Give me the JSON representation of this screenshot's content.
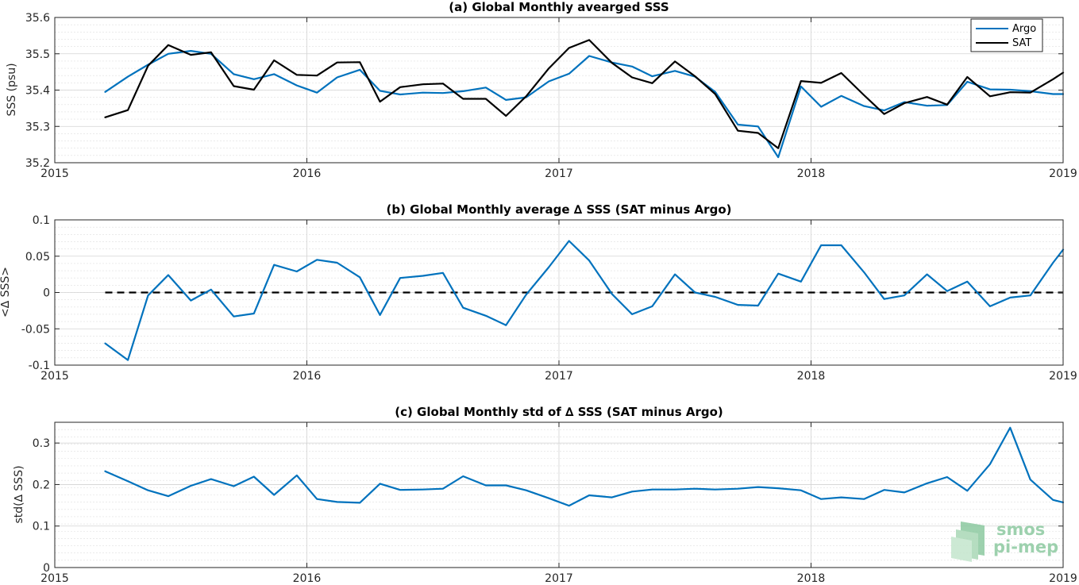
{
  "colors": {
    "argo": "#0072bd",
    "sat": "#000000",
    "grid": "#dfdfdf",
    "watermark": "#8cc9a0"
  },
  "watermark": {
    "line1": "smos",
    "line2": "pi-mep"
  },
  "chart_data": [
    {
      "type": "line",
      "title": "(a) Global Monthly avearged SSS",
      "xlabel": "",
      "ylabel": "SSS (psu)",
      "xlim": [
        2015,
        2019
      ],
      "ylim": [
        35.2,
        35.6
      ],
      "xticks": [
        "2015",
        "2016",
        "2017",
        "2018",
        "2019"
      ],
      "yticks": [
        "35.2",
        "35.3",
        "35.4",
        "35.5",
        "35.6"
      ],
      "grid": true,
      "legend": "top-right",
      "x": [
        2015.2,
        2015.29,
        2015.37,
        2015.45,
        2015.54,
        2015.62,
        2015.71,
        2015.79,
        2015.87,
        2015.96,
        2016.04,
        2016.12,
        2016.21,
        2016.29,
        2016.37,
        2016.46,
        2016.54,
        2016.62,
        2016.71,
        2016.79,
        2016.87,
        2016.96,
        2017.04,
        2017.12,
        2017.21,
        2017.29,
        2017.37,
        2017.46,
        2017.54,
        2017.62,
        2017.71,
        2017.79,
        2017.87,
        2017.96,
        2018.04,
        2018.12,
        2018.21,
        2018.29,
        2018.37,
        2018.46,
        2018.54,
        2018.62,
        2018.71,
        2018.79,
        2018.87,
        2018.96,
        2019.0
      ],
      "series": [
        {
          "name": "Argo",
          "values": [
            35.395,
            35.437,
            35.47,
            35.5,
            35.508,
            35.5,
            35.444,
            35.43,
            35.444,
            35.413,
            35.393,
            35.435,
            35.456,
            35.398,
            35.388,
            35.393,
            35.392,
            35.397,
            35.407,
            35.373,
            35.38,
            35.424,
            35.445,
            35.494,
            35.476,
            35.465,
            35.438,
            35.453,
            35.437,
            35.395,
            35.305,
            35.3,
            35.215,
            35.41,
            35.354,
            35.384,
            35.356,
            35.344,
            35.367,
            35.357,
            35.359,
            35.423,
            35.402,
            35.401,
            35.397,
            35.389,
            35.389
          ]
        },
        {
          "name": "SAT",
          "values": [
            35.325,
            35.345,
            35.467,
            35.524,
            35.497,
            35.504,
            35.411,
            35.401,
            35.482,
            35.442,
            35.44,
            35.476,
            35.477,
            35.368,
            35.408,
            35.416,
            35.418,
            35.376,
            35.376,
            35.329,
            35.383,
            35.46,
            35.516,
            35.538,
            35.475,
            35.435,
            35.419,
            35.479,
            35.438,
            35.389,
            35.288,
            35.282,
            35.24,
            35.425,
            35.42,
            35.447,
            35.386,
            35.334,
            35.364,
            35.381,
            35.36,
            35.436,
            35.383,
            35.394,
            35.393,
            35.43,
            35.448
          ]
        }
      ]
    },
    {
      "type": "line",
      "title": "(b) Global Monthly average ∆ SSS (SAT minus Argo)",
      "xlabel": "",
      "ylabel": "<∆ SSS>",
      "xlim": [
        2015,
        2019
      ],
      "ylim": [
        -0.1,
        0.1
      ],
      "xticks": [
        "2015",
        "2016",
        "2017",
        "2018",
        "2019"
      ],
      "yticks": [
        "-0.1",
        "-0.05",
        "0",
        "0.05",
        "0.1"
      ],
      "grid": true,
      "reference_line": 0,
      "x": [
        2015.2,
        2015.29,
        2015.37,
        2015.45,
        2015.54,
        2015.62,
        2015.71,
        2015.79,
        2015.87,
        2015.96,
        2016.04,
        2016.12,
        2016.21,
        2016.29,
        2016.37,
        2016.46,
        2016.54,
        2016.62,
        2016.71,
        2016.79,
        2016.87,
        2016.96,
        2017.04,
        2017.12,
        2017.21,
        2017.29,
        2017.37,
        2017.46,
        2017.54,
        2017.62,
        2017.71,
        2017.79,
        2017.87,
        2017.96,
        2018.04,
        2018.12,
        2018.21,
        2018.29,
        2018.37,
        2018.46,
        2018.54,
        2018.62,
        2018.71,
        2018.79,
        2018.87,
        2018.96,
        2019.0
      ],
      "series": [
        {
          "name": "",
          "values": [
            -0.07,
            -0.093,
            -0.004,
            0.024,
            -0.011,
            0.004,
            -0.033,
            -0.029,
            0.038,
            0.029,
            0.045,
            0.041,
            0.021,
            -0.031,
            0.02,
            0.023,
            0.027,
            -0.021,
            -0.032,
            -0.045,
            -0.003,
            0.035,
            0.071,
            0.044,
            -0.002,
            -0.03,
            -0.019,
            0.025,
            0.0,
            -0.006,
            -0.017,
            -0.018,
            0.026,
            0.015,
            0.065,
            0.065,
            0.028,
            -0.009,
            -0.004,
            0.025,
            0.002,
            0.015,
            -0.019,
            -0.007,
            -0.004,
            0.041,
            0.059
          ]
        }
      ]
    },
    {
      "type": "line",
      "title": "(c) Global Monthly std of ∆ SSS (SAT minus Argo)",
      "xlabel": "",
      "ylabel": "std(∆ SSS)",
      "xlim": [
        2015,
        2019
      ],
      "ylim": [
        0,
        0.35
      ],
      "xticks": [
        "2015",
        "2016",
        "2017",
        "2018",
        "2019"
      ],
      "yticks": [
        "0",
        "0.1",
        "0.2",
        "0.3"
      ],
      "grid": true,
      "x": [
        2015.2,
        2015.29,
        2015.37,
        2015.45,
        2015.54,
        2015.62,
        2015.71,
        2015.79,
        2015.87,
        2015.96,
        2016.04,
        2016.12,
        2016.21,
        2016.29,
        2016.37,
        2016.46,
        2016.54,
        2016.62,
        2016.71,
        2016.79,
        2016.87,
        2016.96,
        2017.04,
        2017.12,
        2017.21,
        2017.29,
        2017.37,
        2017.46,
        2017.54,
        2017.62,
        2017.71,
        2017.79,
        2017.87,
        2017.96,
        2018.04,
        2018.12,
        2018.21,
        2018.29,
        2018.37,
        2018.46,
        2018.54,
        2018.62,
        2018.71,
        2018.79,
        2018.87,
        2018.96,
        2019.0
      ],
      "series": [
        {
          "name": "",
          "values": [
            0.232,
            0.208,
            0.186,
            0.172,
            0.197,
            0.213,
            0.196,
            0.219,
            0.175,
            0.222,
            0.165,
            0.158,
            0.156,
            0.202,
            0.187,
            0.188,
            0.19,
            0.22,
            0.198,
            0.198,
            0.186,
            0.167,
            0.149,
            0.174,
            0.169,
            0.183,
            0.188,
            0.188,
            0.19,
            0.188,
            0.19,
            0.194,
            0.191,
            0.186,
            0.165,
            0.169,
            0.165,
            0.187,
            0.181,
            0.203,
            0.218,
            0.185,
            0.249,
            0.337,
            0.212,
            0.163,
            0.157
          ]
        }
      ]
    }
  ]
}
